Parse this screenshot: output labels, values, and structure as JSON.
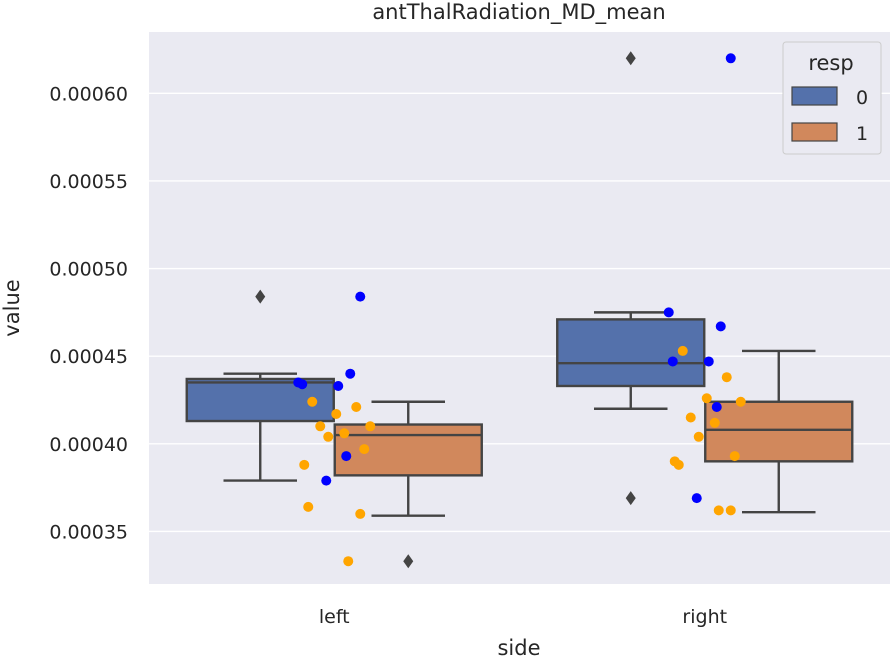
{
  "chart_data": {
    "type": "box",
    "title": "antThalRadiation_MD_mean",
    "xlabel": "side",
    "ylabel": "value",
    "categories": [
      "left",
      "right"
    ],
    "ylim": [
      0.00032,
      0.000635
    ],
    "yticks": [
      0.00035,
      0.0004,
      0.00045,
      0.0005,
      0.00055,
      0.0006
    ],
    "ytick_labels": [
      "0.00035",
      "0.00040",
      "0.00045",
      "0.00050",
      "0.00055",
      "0.00060"
    ],
    "grid": true,
    "legend": {
      "title": "resp",
      "placement": "top-right",
      "entries": [
        "0",
        "1"
      ]
    },
    "colors": {
      "background": "#eaeaf2",
      "grid": "#ffffff",
      "box_0": "#5471ab",
      "box_1": "#d1885c",
      "box_edge": "#444444",
      "points_0": "#0000ff",
      "points_1": "#ffa500",
      "text": "#262626"
    },
    "series": [
      {
        "name": "0",
        "boxes": [
          {
            "category": "left",
            "whislo": 0.000379,
            "q1": 0.000413,
            "median": 0.000435,
            "q3": 0.000437,
            "whishi": 0.00044,
            "fliers": [
              0.000484
            ]
          },
          {
            "category": "right",
            "whislo": 0.00042,
            "q1": 0.000433,
            "median": 0.000446,
            "q3": 0.000471,
            "whishi": 0.000475,
            "fliers": [
              0.000369,
              0.00062
            ]
          }
        ],
        "points": [
          {
            "category": "left",
            "values": [
              0.000435,
              0.00044,
              0.000433,
              0.000434,
              0.000393,
              0.000379,
              0.000484
            ]
          },
          {
            "category": "right",
            "values": [
              0.000475,
              0.000467,
              0.000447,
              0.000447,
              0.000421,
              0.000369,
              0.00062
            ]
          }
        ]
      },
      {
        "name": "1",
        "boxes": [
          {
            "category": "left",
            "whislo": 0.000359,
            "q1": 0.000382,
            "median": 0.000405,
            "q3": 0.000411,
            "whishi": 0.000424,
            "fliers": [
              0.000333
            ]
          },
          {
            "category": "right",
            "whislo": 0.000361,
            "q1": 0.00039,
            "median": 0.000408,
            "q3": 0.000424,
            "whishi": 0.000453,
            "fliers": []
          }
        ],
        "points": [
          {
            "category": "left",
            "values": [
              0.000424,
              0.000421,
              0.000417,
              0.00041,
              0.00041,
              0.000406,
              0.000404,
              0.000397,
              0.000388,
              0.000364,
              0.00036,
              0.000333
            ]
          },
          {
            "category": "right",
            "values": [
              0.000453,
              0.000438,
              0.000426,
              0.000424,
              0.000415,
              0.000412,
              0.000404,
              0.000393,
              0.00039,
              0.000388,
              0.000362,
              0.000362
            ]
          }
        ]
      }
    ]
  }
}
